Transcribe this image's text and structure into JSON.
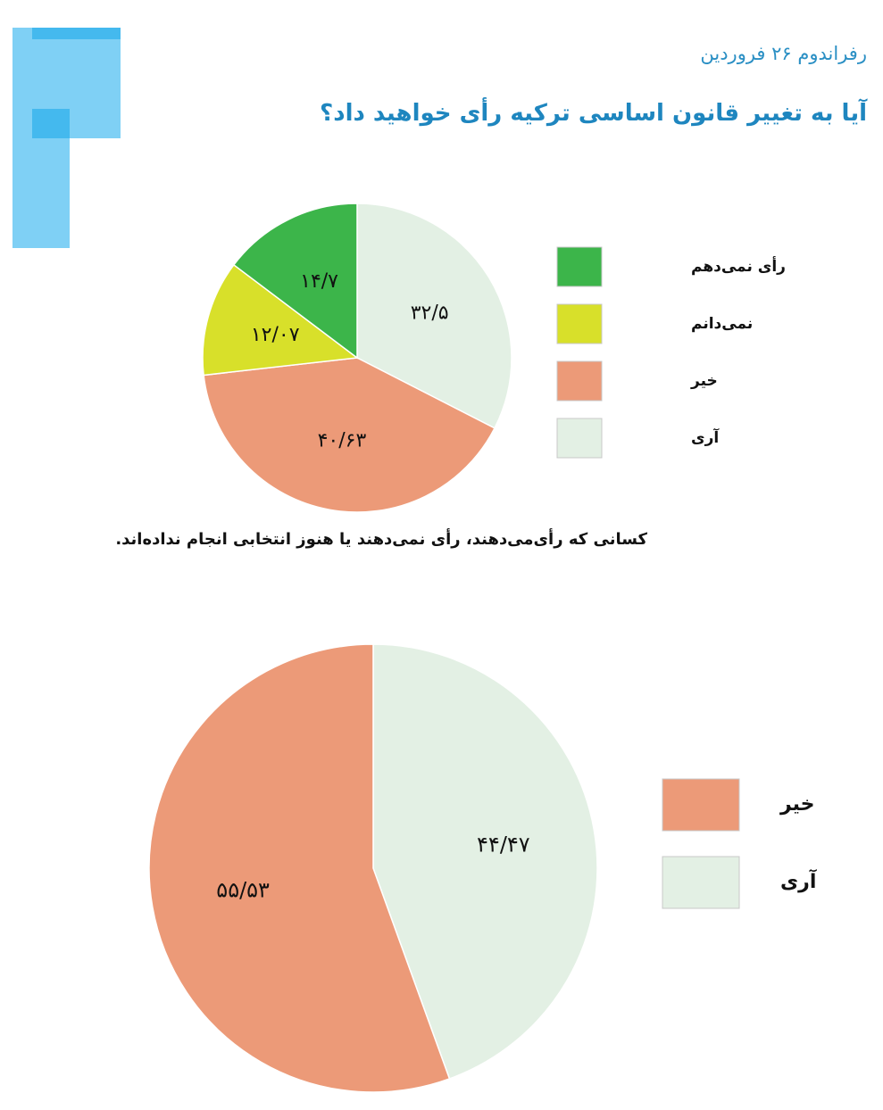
{
  "header": {
    "subtitle": "رفراندوم ۲۶ فروردین",
    "title": "آیا به تغییر قانون اساسی ترکیه رأی خواهید داد؟"
  },
  "caption": "کسانی که رأی‌می‌دهند، رأی نمی‌دهند یا هنوز انتخابی انجام نداده‌اند.",
  "colors": {
    "green": "#3cb54a",
    "yellow": "#d8e02a",
    "salmon": "#ec9a78",
    "pale_green": "#e3f0e4",
    "deco_light": "#7fd0f5",
    "deco_dark": "#44b9ee"
  },
  "chart_data": [
    {
      "type": "pie",
      "title": "",
      "slices": [
        {
          "name": "آری",
          "value": 32.5,
          "label": "۳۲/۵",
          "color": "#e3f0e4"
        },
        {
          "name": "خیر",
          "value": 40.63,
          "label": "۴۰/۶۳",
          "color": "#ec9a78"
        },
        {
          "name": "نمی‌دانم",
          "value": 12.07,
          "label": "۱۲/۰۷",
          "color": "#d8e02a"
        },
        {
          "name": "رأی نمی‌دهم",
          "value": 14.7,
          "label": "۱۴/۷",
          "color": "#3cb54a"
        }
      ],
      "legend": [
        {
          "label": "رأی نمی‌دهم",
          "color": "#3cb54a"
        },
        {
          "label": "نمی‌دانم",
          "color": "#d8e02a"
        },
        {
          "label": "خیر",
          "color": "#ec9a78"
        },
        {
          "label": "آری",
          "color": "#e3f0e4"
        }
      ],
      "legend_position": "right"
    },
    {
      "type": "pie",
      "title": "",
      "slices": [
        {
          "name": "آری",
          "value": 44.47,
          "label": "۴۴/۴۷",
          "color": "#e3f0e4"
        },
        {
          "name": "خیر",
          "value": 55.53,
          "label": "۵۵/۵۳",
          "color": "#ec9a78"
        }
      ],
      "legend": [
        {
          "label": "خیر",
          "color": "#ec9a78"
        },
        {
          "label": "آری",
          "color": "#e3f0e4"
        }
      ],
      "legend_position": "right"
    }
  ]
}
